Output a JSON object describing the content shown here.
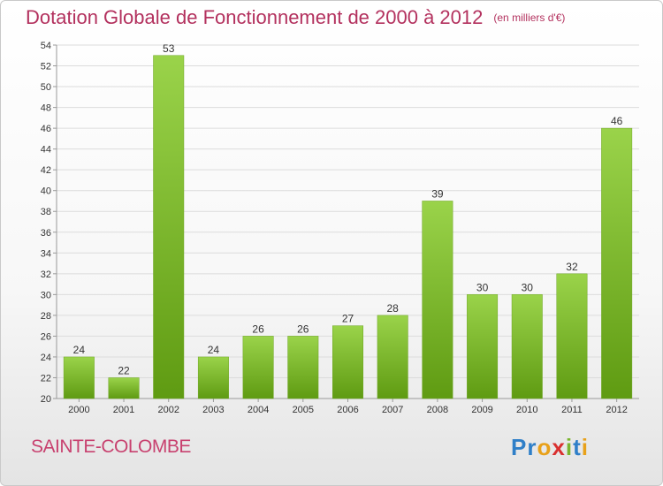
{
  "title": "Dotation Globale de Fonctionnement de 2000 à 2012",
  "subtitle": "(en milliers d'€)",
  "place": "SAINTE-COLOMBE",
  "logo": {
    "text": "Proxiti",
    "letters": [
      {
        "char": "P",
        "color": "#2f7fc8"
      },
      {
        "char": "r",
        "color": "#2f7fc8"
      },
      {
        "char": "o",
        "color": "#e8a11a"
      },
      {
        "char": "x",
        "color": "#d9302f"
      },
      {
        "char": "i",
        "color": "#7ab52e"
      },
      {
        "char": "t",
        "color": "#2f7fc8"
      },
      {
        "char": "i",
        "color": "#e8a11a"
      }
    ]
  },
  "colors": {
    "title": "#b3315e",
    "bar_light": "#9ad34a",
    "bar_dark": "#5f9b12",
    "grid": "#dcdcdc"
  },
  "chart_data": {
    "type": "bar",
    "title": "Dotation Globale de Fonctionnement de 2000 à 2012",
    "subtitle": "(en milliers d'€)",
    "categories": [
      "2000",
      "2001",
      "2002",
      "2003",
      "2004",
      "2005",
      "2006",
      "2007",
      "2008",
      "2009",
      "2010",
      "2011",
      "2012"
    ],
    "values": [
      24,
      22,
      53,
      24,
      26,
      26,
      27,
      28,
      39,
      30,
      30,
      32,
      46
    ],
    "ylim": [
      20,
      54
    ],
    "ytick_step": 2,
    "grid": true
  }
}
